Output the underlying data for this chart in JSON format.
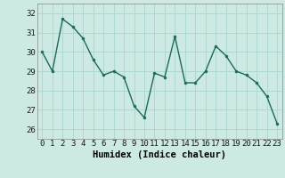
{
  "x": [
    0,
    1,
    2,
    3,
    4,
    5,
    6,
    7,
    8,
    9,
    10,
    11,
    12,
    13,
    14,
    15,
    16,
    17,
    18,
    19,
    20,
    21,
    22,
    23
  ],
  "y": [
    30.0,
    29.0,
    31.7,
    31.3,
    30.7,
    29.6,
    28.8,
    29.0,
    28.7,
    27.2,
    26.6,
    28.9,
    28.7,
    30.8,
    28.4,
    28.4,
    29.0,
    30.3,
    29.8,
    29.0,
    28.8,
    28.4,
    27.7,
    26.3
  ],
  "line_color": "#1a6b5a",
  "marker": "o",
  "markersize": 2.0,
  "linewidth": 1.0,
  "xlabel": "Humidex (Indice chaleur)",
  "xlim": [
    -0.5,
    23.5
  ],
  "ylim": [
    25.5,
    32.5
  ],
  "yticks": [
    26,
    27,
    28,
    29,
    30,
    31,
    32
  ],
  "xticks": [
    0,
    1,
    2,
    3,
    4,
    5,
    6,
    7,
    8,
    9,
    10,
    11,
    12,
    13,
    14,
    15,
    16,
    17,
    18,
    19,
    20,
    21,
    22,
    23
  ],
  "bg_color": "#cce9e4",
  "grid_color": "#aed8d0",
  "xlabel_fontsize": 7.5,
  "tick_fontsize": 6.5,
  "spine_color": "#888888"
}
